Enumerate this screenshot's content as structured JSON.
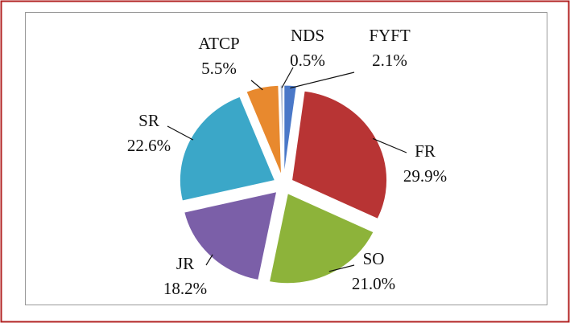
{
  "chart_data": {
    "type": "pie",
    "categories": [
      "FYFT",
      "FR",
      "SO",
      "JR",
      "SR",
      "ATCP",
      "NDS"
    ],
    "values": [
      2.1,
      29.9,
      21.0,
      18.2,
      22.6,
      5.5,
      0.5
    ],
    "value_labels": [
      "2.1%",
      "29.9%",
      "21.0%",
      "18.2%",
      "22.6%",
      "5.5%",
      "0.5%"
    ],
    "colors": [
      "#4a78c8",
      "#b83434",
      "#8db33a",
      "#7b5fa8",
      "#3ba7c8",
      "#e8892e",
      "#b8c4d8"
    ]
  }
}
